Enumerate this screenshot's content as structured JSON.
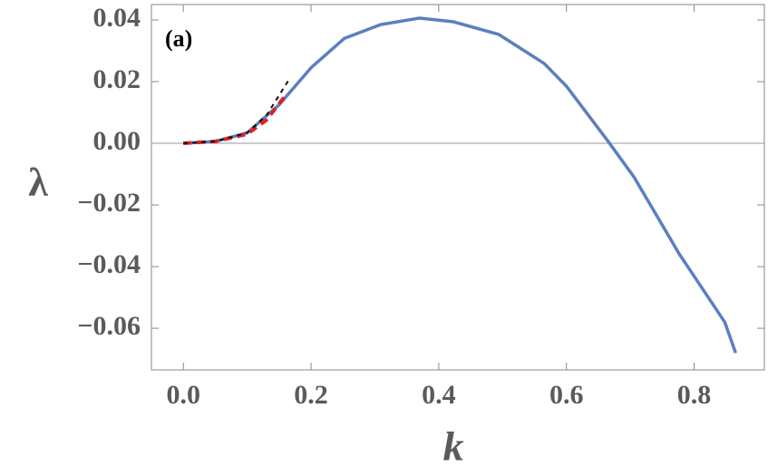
{
  "chart_data": {
    "type": "line",
    "annotation": "(a)",
    "x_label": "k",
    "y_label": "λ",
    "xlim": [
      -0.05,
      0.91
    ],
    "ylim": [
      -0.0735,
      0.045
    ],
    "xticks": [
      {
        "value": 0,
        "label": "0.0"
      },
      {
        "value": 0.2,
        "label": "0.2"
      },
      {
        "value": 0.4,
        "label": "0.4"
      },
      {
        "value": 0.6,
        "label": "0.6"
      },
      {
        "value": 0.8,
        "label": "0.8"
      }
    ],
    "yticks": [
      {
        "value": -0.06,
        "label": "−0.06"
      },
      {
        "value": -0.04,
        "label": "−0.04"
      },
      {
        "value": -0.02,
        "label": "−0.02"
      },
      {
        "value": 0,
        "label": "0.00"
      },
      {
        "value": 0.02,
        "label": "0.02"
      },
      {
        "value": 0.04,
        "label": "0.04"
      }
    ],
    "zero_line": true,
    "series": [
      {
        "color": "#5b7fbf",
        "style": "solid",
        "x": [
          0,
          0.05,
          0.1,
          0.15,
          0.2,
          0.252,
          0.309,
          0.37,
          0.423,
          0.494,
          0.565,
          0.6,
          0.664,
          0.706,
          0.777,
          0.848,
          0.865
        ],
        "values": [
          0,
          0.0006,
          0.0034,
          0.0125,
          0.0245,
          0.034,
          0.0385,
          0.0406,
          0.0394,
          0.0353,
          0.0259,
          0.0185,
          0.001,
          -0.011,
          -0.036,
          -0.058,
          -0.068
        ]
      },
      {
        "color": "#e02020",
        "style": "dashed",
        "x": [
          0,
          0.05,
          0.1,
          0.13,
          0.16
        ],
        "values": [
          0,
          0.0006,
          0.003,
          0.0075,
          0.0155
        ]
      },
      {
        "color": "#111111",
        "style": "dashed-thin",
        "x": [
          0,
          0.05,
          0.1,
          0.13,
          0.165
        ],
        "values": [
          0,
          0.0006,
          0.0034,
          0.009,
          0.0205
        ]
      }
    ]
  }
}
